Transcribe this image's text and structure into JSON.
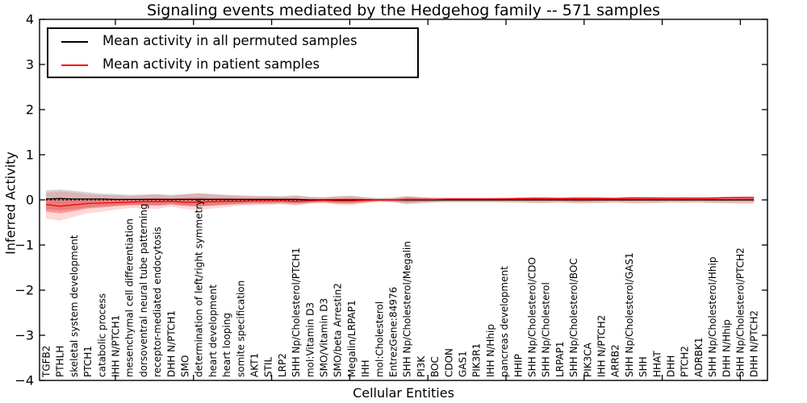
{
  "chart_data": {
    "type": "line",
    "title": "Signaling events mediated by the Hedgehog family -- 571 samples",
    "xlabel": "Cellular Entities",
    "ylabel": "Inferred Activity",
    "ylim": [
      -4,
      4
    ],
    "ytick_values": [
      4,
      3,
      2,
      1,
      0,
      -1,
      -2,
      -3,
      -4
    ],
    "ytick_labels": [
      "4",
      "3",
      "2",
      "1",
      "0",
      "−1",
      "−2",
      "−3",
      "−4"
    ],
    "grid": false,
    "legend_position": "upper left",
    "sample_count": "571",
    "categories": [
      "TGFB2",
      "PTHLH",
      "skeletal system development",
      "PTCH1",
      "catabolic process",
      "IHH N/PTCH1",
      "mesenchymal cell differentiation",
      "dorsoventral neural tube patterning",
      "receptor-mediated endocytosis",
      "DHH N/PTCH1",
      "SMO",
      "determination of left/right symmetry",
      "heart development",
      "heart looping",
      "somite specification",
      "AKT1",
      "STIL",
      "LRP2",
      "SHH Np/Cholesterol/PTCH1",
      "mol:Vitamin D3",
      "SMO/Vitamin D3",
      "SMO/beta Arrestin2",
      "Megalin/LRPAP1",
      "IHH",
      "mol:Cholesterol",
      "EntrezGene:84976",
      "SHH Np/Cholesterol/Megalin",
      "PI3K",
      "BOC",
      "CDON",
      "GAS1",
      "PIK3R1",
      "IHH N/Hhip",
      "pancreas development",
      "HHIP",
      "SHH Np/Cholesterol/CDO",
      "SHH Np/Cholesterol",
      "LRPAP1",
      "SHH Np/Cholesterol/BOC",
      "PIK3CA",
      "IHH N/PTCH2",
      "ARRB2",
      "SHH Np/Cholesterol/GAS1",
      "SHH",
      "HHAT",
      "DHH",
      "PTCH2",
      "ADRBK1",
      "SHH Np/Cholesterol/Hhip",
      "DHH N/Hhip",
      "SHH Np/Cholesterol/PTCH2",
      "DHH N/PTCH2"
    ],
    "series": [
      {
        "name": "Mean activity in all permuted samples",
        "color": "#000000",
        "line_style": "solid",
        "values": [
          0.02,
          0.03,
          0.02,
          0.02,
          0.02,
          0.01,
          0.01,
          0.01,
          0.01,
          0.01,
          0.01,
          0.01,
          0.01,
          0.01,
          0.01,
          0.01,
          0.01,
          0.01,
          0.01,
          0.0,
          0.0,
          0.0,
          0.0,
          0.0,
          0.0,
          0.0,
          0.0,
          0.0,
          0.0,
          0.0,
          0.0,
          0.0,
          0.0,
          0.0,
          0.0,
          0.0,
          0.0,
          0.0,
          0.0,
          0.0,
          0.0,
          0.0,
          0.0,
          0.0,
          0.0,
          0.0,
          0.0,
          0.0,
          0.0,
          0.0,
          0.0,
          0.0
        ]
      },
      {
        "name": "Mean activity in patient samples",
        "color": "#ff0000",
        "line_style": "solid",
        "values": [
          -0.1,
          -0.14,
          -0.11,
          -0.08,
          -0.07,
          -0.06,
          -0.05,
          -0.04,
          -0.04,
          -0.03,
          -0.05,
          -0.05,
          -0.04,
          -0.03,
          -0.03,
          -0.02,
          -0.02,
          -0.02,
          -0.03,
          -0.02,
          -0.01,
          -0.02,
          -0.02,
          -0.01,
          0.0,
          0.0,
          0.01,
          0.01,
          0.01,
          0.02,
          0.02,
          0.02,
          0.02,
          0.02,
          0.03,
          0.03,
          0.03,
          0.03,
          0.03,
          0.03,
          0.03,
          0.03,
          0.04,
          0.04,
          0.04,
          0.04,
          0.04,
          0.04,
          0.04,
          0.05,
          0.05,
          0.05
        ]
      }
    ],
    "zero_line": {
      "value": 0,
      "color": "#000000",
      "style": "dotted"
    },
    "bands": [
      {
        "name": "permuted-samples-std",
        "color": "#888888",
        "opacity": 0.35,
        "upper": [
          0.21,
          0.23,
          0.2,
          0.17,
          0.14,
          0.13,
          0.11,
          0.12,
          0.13,
          0.11,
          0.13,
          0.15,
          0.13,
          0.11,
          0.1,
          0.09,
          0.09,
          0.08,
          0.1,
          0.07,
          0.06,
          0.08,
          0.09,
          0.06,
          0.04,
          0.05,
          0.08,
          0.06,
          0.05,
          0.05,
          0.05,
          0.05,
          0.05,
          0.05,
          0.05,
          0.06,
          0.06,
          0.05,
          0.06,
          0.06,
          0.06,
          0.05,
          0.06,
          0.06,
          0.06,
          0.05,
          0.05,
          0.05,
          0.06,
          0.06,
          0.06,
          0.06
        ],
        "lower": [
          -0.21,
          -0.23,
          -0.2,
          -0.17,
          -0.14,
          -0.13,
          -0.11,
          -0.12,
          -0.13,
          -0.11,
          -0.13,
          -0.15,
          -0.13,
          -0.11,
          -0.1,
          -0.09,
          -0.09,
          -0.08,
          -0.1,
          -0.07,
          -0.06,
          -0.08,
          -0.09,
          -0.06,
          -0.04,
          -0.05,
          -0.08,
          -0.06,
          -0.05,
          -0.05,
          -0.05,
          -0.05,
          -0.05,
          -0.05,
          -0.05,
          -0.06,
          -0.06,
          -0.05,
          -0.06,
          -0.06,
          -0.06,
          -0.05,
          -0.06,
          -0.06,
          -0.06,
          -0.05,
          -0.05,
          -0.05,
          -0.06,
          -0.06,
          -0.06,
          -0.06
        ]
      },
      {
        "name": "patient-samples-std-outer",
        "color": "#ff0000",
        "opacity": 0.15,
        "upper": [
          0.16,
          0.19,
          0.16,
          0.13,
          0.11,
          0.1,
          0.09,
          0.1,
          0.12,
          0.09,
          0.12,
          0.14,
          0.12,
          0.1,
          0.09,
          0.08,
          0.08,
          0.07,
          0.09,
          0.06,
          0.05,
          0.08,
          0.09,
          0.05,
          0.03,
          0.04,
          0.08,
          0.06,
          0.05,
          0.04,
          0.04,
          0.04,
          0.04,
          0.05,
          0.05,
          0.06,
          0.06,
          0.05,
          0.07,
          0.07,
          0.06,
          0.05,
          0.07,
          0.07,
          0.06,
          0.05,
          0.06,
          0.05,
          0.06,
          0.07,
          0.08,
          0.08
        ],
        "lower": [
          -0.42,
          -0.46,
          -0.38,
          -0.3,
          -0.26,
          -0.22,
          -0.18,
          -0.18,
          -0.2,
          -0.15,
          -0.2,
          -0.23,
          -0.19,
          -0.16,
          -0.13,
          -0.12,
          -0.11,
          -0.1,
          -0.13,
          -0.09,
          -0.07,
          -0.11,
          -0.12,
          -0.07,
          -0.04,
          -0.05,
          -0.1,
          -0.08,
          -0.06,
          -0.05,
          -0.05,
          -0.05,
          -0.05,
          -0.06,
          -0.06,
          -0.07,
          -0.07,
          -0.06,
          -0.08,
          -0.08,
          -0.07,
          -0.06,
          -0.08,
          -0.08,
          -0.07,
          -0.06,
          -0.07,
          -0.06,
          -0.07,
          -0.08,
          -0.09,
          -0.09
        ]
      },
      {
        "name": "patient-samples-std-inner",
        "color": "#ff0000",
        "opacity": 0.3,
        "upper": [
          0.03,
          0.03,
          0.02,
          0.03,
          0.02,
          0.02,
          0.02,
          0.03,
          0.04,
          0.03,
          0.04,
          0.05,
          0.04,
          0.04,
          0.03,
          0.03,
          0.03,
          0.03,
          0.03,
          0.02,
          0.02,
          0.03,
          0.04,
          0.02,
          0.02,
          0.02,
          0.05,
          0.04,
          0.03,
          0.03,
          0.03,
          0.03,
          0.03,
          0.04,
          0.04,
          0.05,
          0.05,
          0.04,
          0.05,
          0.05,
          0.05,
          0.04,
          0.06,
          0.06,
          0.05,
          0.05,
          0.05,
          0.05,
          0.05,
          0.06,
          0.07,
          0.07
        ],
        "lower": [
          -0.26,
          -0.3,
          -0.25,
          -0.19,
          -0.17,
          -0.14,
          -0.12,
          -0.11,
          -0.12,
          -0.09,
          -0.13,
          -0.14,
          -0.12,
          -0.1,
          -0.08,
          -0.07,
          -0.07,
          -0.06,
          -0.08,
          -0.06,
          -0.04,
          -0.07,
          -0.07,
          -0.04,
          -0.02,
          -0.03,
          -0.05,
          -0.04,
          -0.03,
          -0.02,
          -0.02,
          -0.02,
          -0.02,
          -0.02,
          -0.02,
          -0.02,
          -0.02,
          -0.02,
          -0.03,
          -0.03,
          -0.02,
          -0.02,
          -0.02,
          -0.02,
          -0.02,
          -0.01,
          -0.02,
          -0.01,
          -0.02,
          -0.02,
          -0.02,
          -0.02
        ]
      }
    ]
  }
}
